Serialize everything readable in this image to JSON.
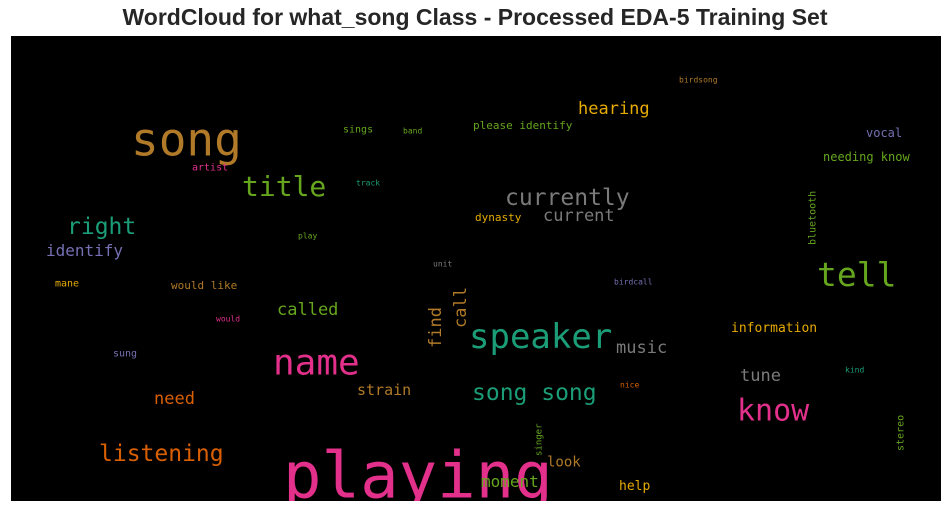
{
  "chart_data": {
    "type": "wordcloud",
    "title": "WordCloud for what_song Class - Processed EDA-5 Training Set",
    "background": "#000000",
    "words": [
      {
        "text": "song",
        "color": "#b07a28"
      },
      {
        "text": "playing",
        "color": "#e2308b"
      },
      {
        "text": "speaker",
        "color": "#1b9e77"
      },
      {
        "text": "name",
        "color": "#e2308b"
      },
      {
        "text": "tell",
        "color": "#66a61e"
      },
      {
        "text": "know",
        "color": "#e2308b"
      },
      {
        "text": "title",
        "color": "#66a61e"
      },
      {
        "text": "currently",
        "color": "#7a7a7a"
      },
      {
        "text": "song song",
        "color": "#1b9e77"
      },
      {
        "text": "listening",
        "color": "#d95f02"
      },
      {
        "text": "right",
        "color": "#1b9e77"
      },
      {
        "text": "current",
        "color": "#7a7a7a"
      },
      {
        "text": "music",
        "color": "#7a7a7a"
      },
      {
        "text": "called",
        "color": "#66a61e"
      },
      {
        "text": "hearing",
        "color": "#e6ab02"
      },
      {
        "text": "need",
        "color": "#d95f02"
      },
      {
        "text": "tune",
        "color": "#7a7a7a"
      },
      {
        "text": "identify",
        "color": "#7570b3"
      },
      {
        "text": "find",
        "color": "#b07a28"
      },
      {
        "text": "call",
        "color": "#b07a28"
      },
      {
        "text": "moment",
        "color": "#66a61e"
      },
      {
        "text": "strain",
        "color": "#b07a28"
      },
      {
        "text": "look",
        "color": "#b07a28"
      },
      {
        "text": "information",
        "color": "#e6ab02"
      },
      {
        "text": "needing know",
        "color": "#66a61e"
      },
      {
        "text": "vocal",
        "color": "#7570b3"
      },
      {
        "text": "help",
        "color": "#e6ab02"
      },
      {
        "text": "please identify",
        "color": "#66a61e"
      },
      {
        "text": "dynasty",
        "color": "#e6ab02"
      },
      {
        "text": "bluetooth",
        "color": "#66a61e"
      },
      {
        "text": "would like",
        "color": "#b07a28"
      },
      {
        "text": "sings",
        "color": "#66a61e"
      },
      {
        "text": "artist",
        "color": "#e2308b"
      },
      {
        "text": "mane",
        "color": "#e6ab02"
      },
      {
        "text": "sung",
        "color": "#7570b3"
      },
      {
        "text": "stereo",
        "color": "#66a61e"
      },
      {
        "text": "singer",
        "color": "#66a61e"
      },
      {
        "text": "birdsong",
        "color": "#b07a28"
      },
      {
        "text": "band",
        "color": "#66a61e"
      },
      {
        "text": "track",
        "color": "#1b9e77"
      },
      {
        "text": "play",
        "color": "#66a61e"
      },
      {
        "text": "unit",
        "color": "#7a7a7a"
      },
      {
        "text": "birdcall",
        "color": "#7570b3"
      },
      {
        "text": "would",
        "color": "#e2308b"
      },
      {
        "text": "nice",
        "color": "#d95f02"
      },
      {
        "text": "kind",
        "color": "#1b9e77"
      }
    ]
  }
}
